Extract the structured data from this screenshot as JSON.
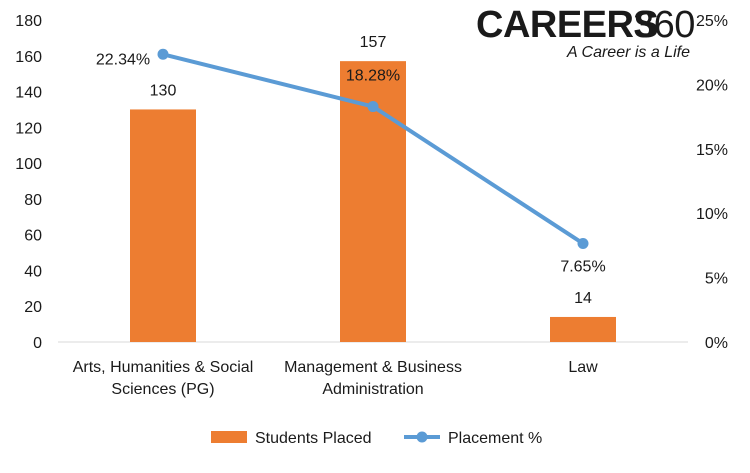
{
  "logo": {
    "word": "CAREERS",
    "number": "360",
    "tagline": "A Career is a Life",
    "colors": {
      "word": "#3a5d8f",
      "number": "#8e9aab",
      "tagline": "#2c6cb5"
    }
  },
  "chart_data": {
    "type": "bar+line",
    "categories": [
      [
        "Arts, Humanities & Social",
        "Sciences (PG)"
      ],
      [
        "Management & Business",
        "Administration"
      ],
      [
        "Law"
      ]
    ],
    "series": [
      {
        "name": "Students Placed",
        "type": "bar",
        "axis": "left",
        "color": "#ed7d31",
        "values": [
          130,
          157,
          14
        ],
        "labels": [
          "130",
          "157",
          "14"
        ]
      },
      {
        "name": "Placement %",
        "type": "line",
        "axis": "right",
        "color": "#5b9bd5",
        "values": [
          22.34,
          18.28,
          7.65
        ],
        "labels": [
          "22.34%",
          "18.28%",
          "7.65%"
        ]
      }
    ],
    "y_left": {
      "min": 0,
      "max": 180,
      "step": 20,
      "ticks": [
        "0",
        "20",
        "40",
        "60",
        "80",
        "100",
        "120",
        "140",
        "160",
        "180"
      ]
    },
    "y_right": {
      "min": 0,
      "max": 25,
      "step": 5,
      "ticks": [
        "0%",
        "5%",
        "10%",
        "15%",
        "20%",
        "25%"
      ]
    },
    "grid": false,
    "legend_position": "bottom"
  }
}
